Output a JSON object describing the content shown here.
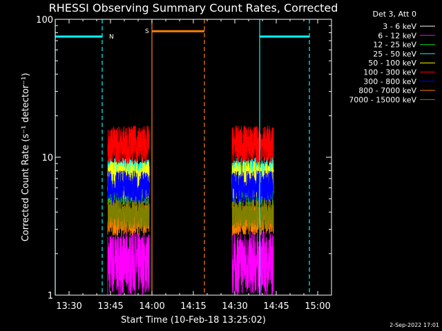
{
  "chart_data": {
    "type": "line",
    "title": "RHESSI Observing Summary Count Rates, Corrected",
    "xlabel": "Start Time (10-Feb-18 13:25:02)",
    "ylabel": "Corrected Count Rate (s⁻¹ detector⁻¹)",
    "yscale": "log",
    "ylim": [
      1,
      100
    ],
    "xlim": [
      "13:25",
      "15:05"
    ],
    "x_ticks": [
      "13:30",
      "13:45",
      "14:00",
      "14:15",
      "14:30",
      "14:45",
      "15:00"
    ],
    "y_ticks": [
      "1",
      "10",
      "100"
    ],
    "legend_header": "Det 3, Att 0",
    "legend_position": "top-right",
    "series": [
      {
        "name": "3 - 6 keV",
        "color": "#ffffff",
        "segments": [],
        "range": [
          1,
          1
        ]
      },
      {
        "name": "6 - 12 keV",
        "color": "#ff00ff",
        "segments": [
          [
            "13:44",
            "13:59"
          ],
          [
            "14:29",
            "14:44"
          ]
        ],
        "range": [
          1.0,
          2.9
        ]
      },
      {
        "name": "12 - 25 keV",
        "color": "#00dd00",
        "segments": [
          [
            "13:44",
            "13:59"
          ],
          [
            "14:29",
            "14:44"
          ]
        ],
        "range": [
          4.5,
          9.0
        ]
      },
      {
        "name": "25 - 50 keV",
        "color": "#00ffff",
        "segments": [
          [
            "13:44",
            "13:59"
          ],
          [
            "14:29",
            "14:44"
          ]
        ],
        "range": [
          6.0,
          10.0
        ]
      },
      {
        "name": "50 - 100 keV",
        "color": "#ffff00",
        "segments": [
          [
            "13:44",
            "13:59"
          ],
          [
            "14:29",
            "14:44"
          ]
        ],
        "range": [
          5.0,
          9.5
        ]
      },
      {
        "name": "100 - 300 keV",
        "color": "#ff0000",
        "segments": [
          [
            "13:44",
            "13:59"
          ],
          [
            "14:29",
            "14:44"
          ]
        ],
        "range": [
          9.0,
          17.0
        ]
      },
      {
        "name": "300 - 800 keV",
        "color": "#0000ff",
        "segments": [
          [
            "13:44",
            "13:59"
          ],
          [
            "14:29",
            "14:44"
          ]
        ],
        "range": [
          4.5,
          8.0
        ]
      },
      {
        "name": "800 - 7000 keV",
        "color": "#ff8000",
        "segments": [
          [
            "13:44",
            "13:59"
          ],
          [
            "14:29",
            "14:44"
          ]
        ],
        "range": [
          2.7,
          4.5
        ]
      },
      {
        "name": "7000 - 15000 keV",
        "color": "#808000",
        "segments": [
          [
            "13:44",
            "13:59"
          ],
          [
            "14:29",
            "14:44"
          ]
        ],
        "range": [
          3.0,
          5.0
        ]
      }
    ],
    "flag_bars": [
      {
        "label": "N",
        "color": "#00ffff",
        "level": 75,
        "intervals": [
          [
            "13:25",
            "13:42"
          ],
          [
            "14:39",
            "14:57"
          ]
        ],
        "solid_edges": [
          "13:25",
          "14:39"
        ],
        "dashed_edges": [
          "13:42",
          "14:57"
        ]
      },
      {
        "label": "S",
        "color": "#ff8000",
        "level": 82,
        "intervals": [
          [
            "14:00",
            "14:19"
          ]
        ],
        "solid_edges": [
          "14:00"
        ],
        "dashed_edges": [
          "14:19"
        ]
      }
    ],
    "footer_date": "2-Sep-2022 17:01"
  }
}
